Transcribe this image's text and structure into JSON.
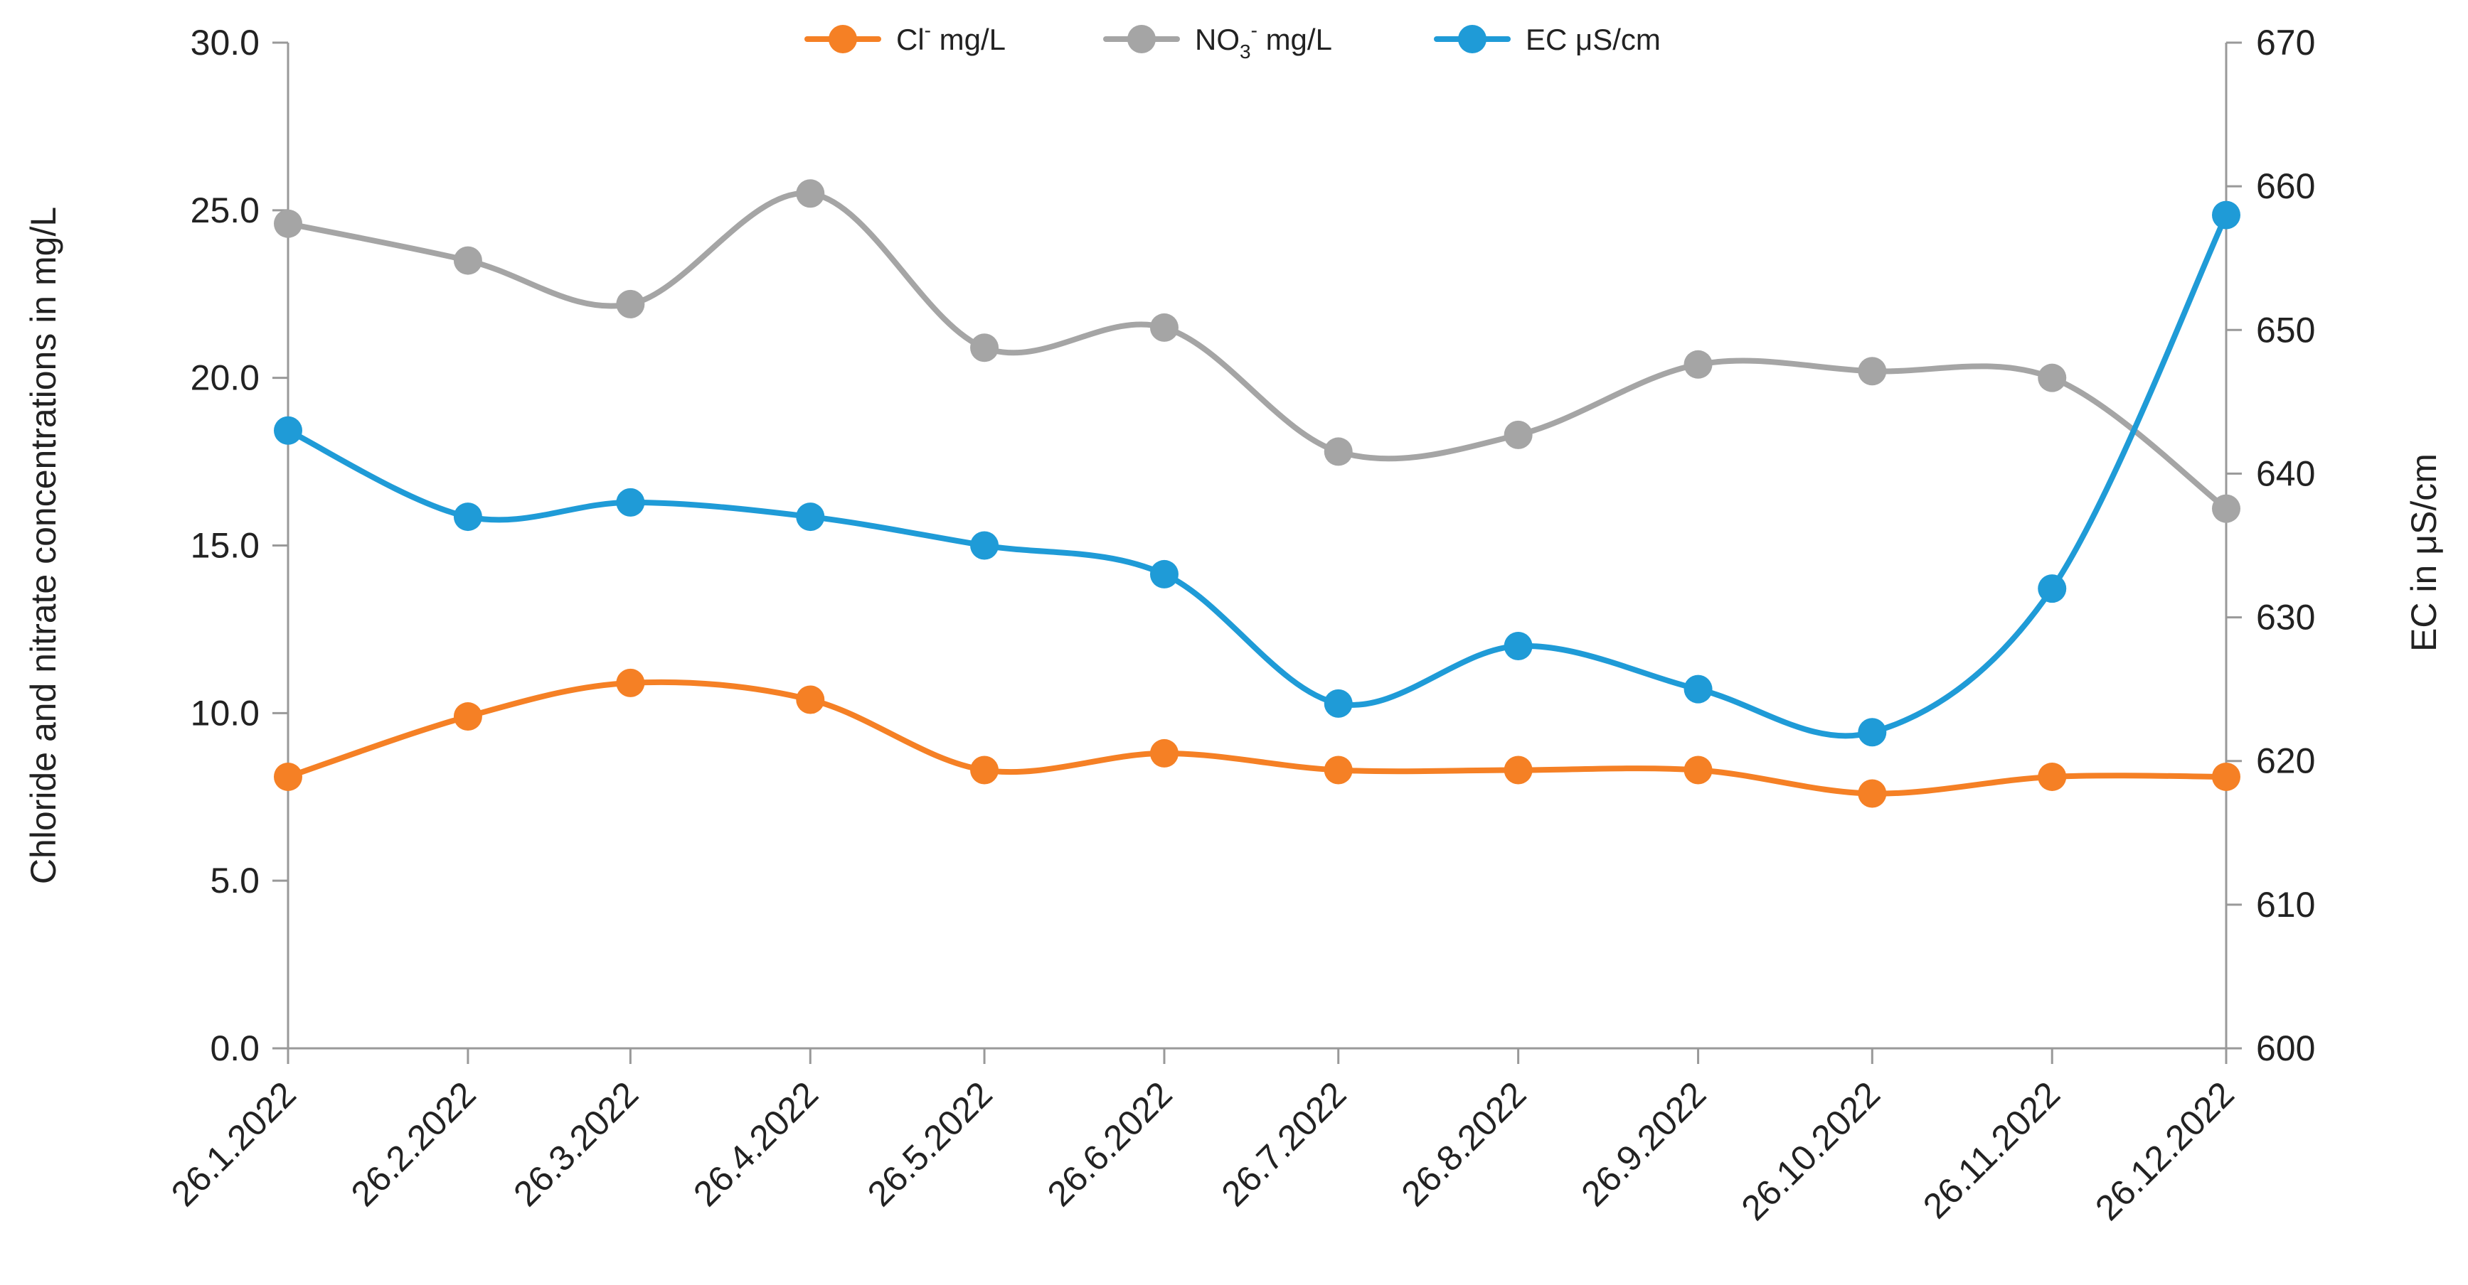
{
  "chart_data": {
    "type": "line",
    "title": "",
    "xlabel": "",
    "ylabel": "Chloride and nitrate concentrations in mg/L",
    "y2label": "EC in μS/cm",
    "ylim": [
      0,
      30
    ],
    "y2lim": [
      600,
      670
    ],
    "yticks": [
      "0.0",
      "5.0",
      "10.0",
      "15.0",
      "20.0",
      "25.0",
      "30.0"
    ],
    "y2ticks": [
      "600",
      "610",
      "620",
      "630",
      "640",
      "650",
      "660",
      "670"
    ],
    "categories": [
      "26.1.2022",
      "26.2.2022",
      "26.3.2022",
      "26.4.2022",
      "26.5.2022",
      "26.6.2022",
      "26.7.2022",
      "26.8.2022",
      "26.9.2022",
      "26.10.2022",
      "26.11.2022",
      "26.12.2022"
    ],
    "x_days": [
      0,
      31,
      59,
      90,
      120,
      151,
      181,
      212,
      243,
      273,
      304,
      334
    ],
    "grid": false,
    "legend_position": "top-center",
    "series": [
      {
        "name": "Cl⁻ mg/L",
        "legend_base": "Cl",
        "legend_sup": "-",
        "legend_unit": " mg/L",
        "color": "#F58025",
        "axis": "left",
        "values": [
          8.1,
          9.9,
          10.9,
          10.4,
          8.3,
          8.8,
          8.3,
          8.3,
          8.3,
          7.6,
          8.1,
          8.1
        ]
      },
      {
        "name": "NO₃⁻ mg/L",
        "legend_base": "NO",
        "legend_sub": "3",
        "legend_sup": "-",
        "legend_unit": " mg/L",
        "color": "#A5A5A5",
        "axis": "left",
        "values": [
          24.6,
          23.5,
          22.2,
          25.5,
          20.9,
          21.5,
          17.8,
          18.3,
          20.4,
          20.2,
          20.0,
          16.1
        ]
      },
      {
        "name": "EC μS/cm",
        "legend_base": "EC μS/cm",
        "color": "#1F9BD7",
        "axis": "right",
        "values": [
          643,
          637,
          638,
          637,
          635,
          633,
          624,
          628,
          625,
          622,
          632,
          658
        ]
      }
    ]
  }
}
